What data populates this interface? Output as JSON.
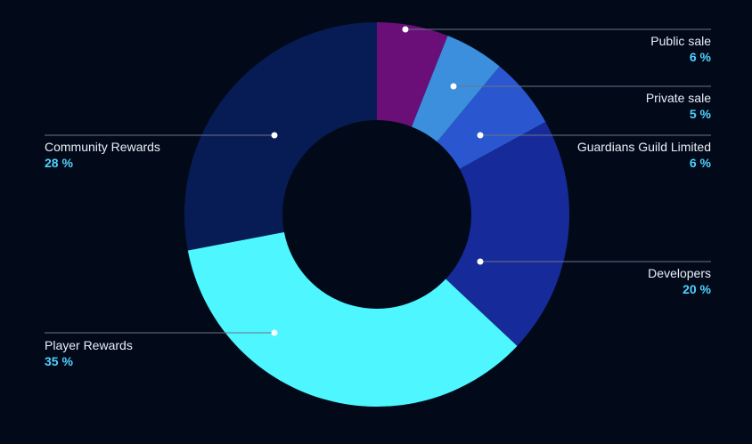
{
  "chart_data": {
    "type": "pie",
    "slices": [
      {
        "label": "Public sale",
        "value": 6,
        "pct_label": "6 %",
        "color": "#6b0f78",
        "side": "right"
      },
      {
        "label": "Private sale",
        "value": 5,
        "pct_label": "5 %",
        "color": "#3b8fdd",
        "side": "right"
      },
      {
        "label": "Guardians Guild Limited",
        "value": 6,
        "pct_label": "6 %",
        "color": "#2a57cf",
        "side": "right"
      },
      {
        "label": "Developers",
        "value": 20,
        "pct_label": "20 %",
        "color": "#172a99",
        "side": "right"
      },
      {
        "label": "Player Rewards",
        "value": 35,
        "pct_label": "35 %",
        "color": "#4ef6ff",
        "side": "left"
      },
      {
        "label": "Community Rewards",
        "value": 28,
        "pct_label": "28 %",
        "color": "#071c55",
        "side": "left"
      }
    ],
    "legend": "leader-line labels",
    "colors": {
      "background": "#020a1a",
      "label_text": "#e9eef7",
      "percent_text": "#4fd1ff",
      "leader_line": "#6b7386"
    }
  }
}
